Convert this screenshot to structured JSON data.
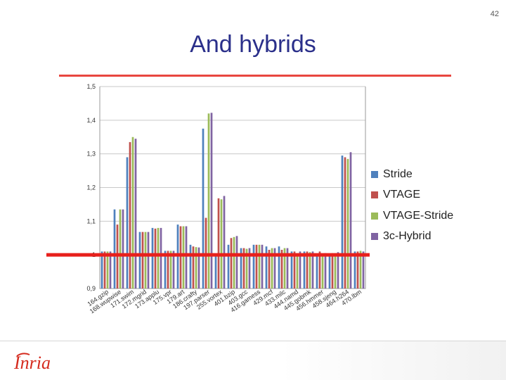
{
  "page_number": "42",
  "title": "And hybrids",
  "logo_text": "Inria",
  "colors": {
    "title": "#2a2f8a",
    "red_rule": "#e8463f",
    "threshold_line": "#e8201c",
    "logo": "#d52b1e"
  },
  "chart_data": {
    "type": "bar",
    "ylim": [
      0.9,
      1.5
    ],
    "yticks": [
      "0,9",
      "1",
      "1,1",
      "1,2",
      "1,3",
      "1,4",
      "1,5"
    ],
    "ytick_values": [
      0.9,
      1.0,
      1.1,
      1.2,
      1.3,
      1.4,
      1.5
    ],
    "grid": true,
    "legend_position": "right",
    "reference_line_value": 1.0,
    "categories": [
      "164.gzip",
      "168.wupwise",
      "171.swim",
      "172.mgrid",
      "173.applu",
      "175.vpr",
      "179.art",
      "186.crafty",
      "197.parser",
      "255.vortex",
      "401.bzip",
      "403.gcc",
      "416.gamess",
      "429.mcf",
      "433.milc",
      "444.namd",
      "445.gobmk",
      "456.hmmer",
      "458.sjeng",
      "464.h264",
      "470.lbm"
    ],
    "series": [
      {
        "name": "Stride",
        "color": "#4f81bd",
        "values": [
          1.01,
          1.135,
          1.29,
          1.068,
          1.08,
          1.012,
          1.09,
          1.03,
          1.375,
          1.0,
          1.03,
          1.02,
          1.03,
          1.025,
          1.025,
          1.01,
          1.01,
          1.0,
          1.0,
          1.295,
          1.01
        ]
      },
      {
        "name": "VTAGE",
        "color": "#c0504d",
        "values": [
          1.01,
          1.09,
          1.335,
          1.068,
          1.078,
          1.012,
          1.085,
          1.025,
          1.11,
          1.168,
          1.05,
          1.02,
          1.03,
          1.015,
          1.015,
          1.01,
          1.01,
          1.01,
          1.005,
          1.29,
          1.01
        ]
      },
      {
        "name": "VTAGE-Stride",
        "color": "#9bbb59",
        "values": [
          1.01,
          1.135,
          1.35,
          1.068,
          1.08,
          1.012,
          1.085,
          1.023,
          1.42,
          1.165,
          1.053,
          1.018,
          1.03,
          1.02,
          1.02,
          1.005,
          1.008,
          1.0,
          1.005,
          1.285,
          1.012
        ]
      },
      {
        "name": "3c-Hybrid",
        "color": "#8064a2",
        "values": [
          1.01,
          1.135,
          1.345,
          1.068,
          1.08,
          1.012,
          1.085,
          1.022,
          1.422,
          1.175,
          1.056,
          1.02,
          1.03,
          1.02,
          1.02,
          1.01,
          1.01,
          1.005,
          1.008,
          1.305,
          1.01
        ]
      }
    ]
  }
}
